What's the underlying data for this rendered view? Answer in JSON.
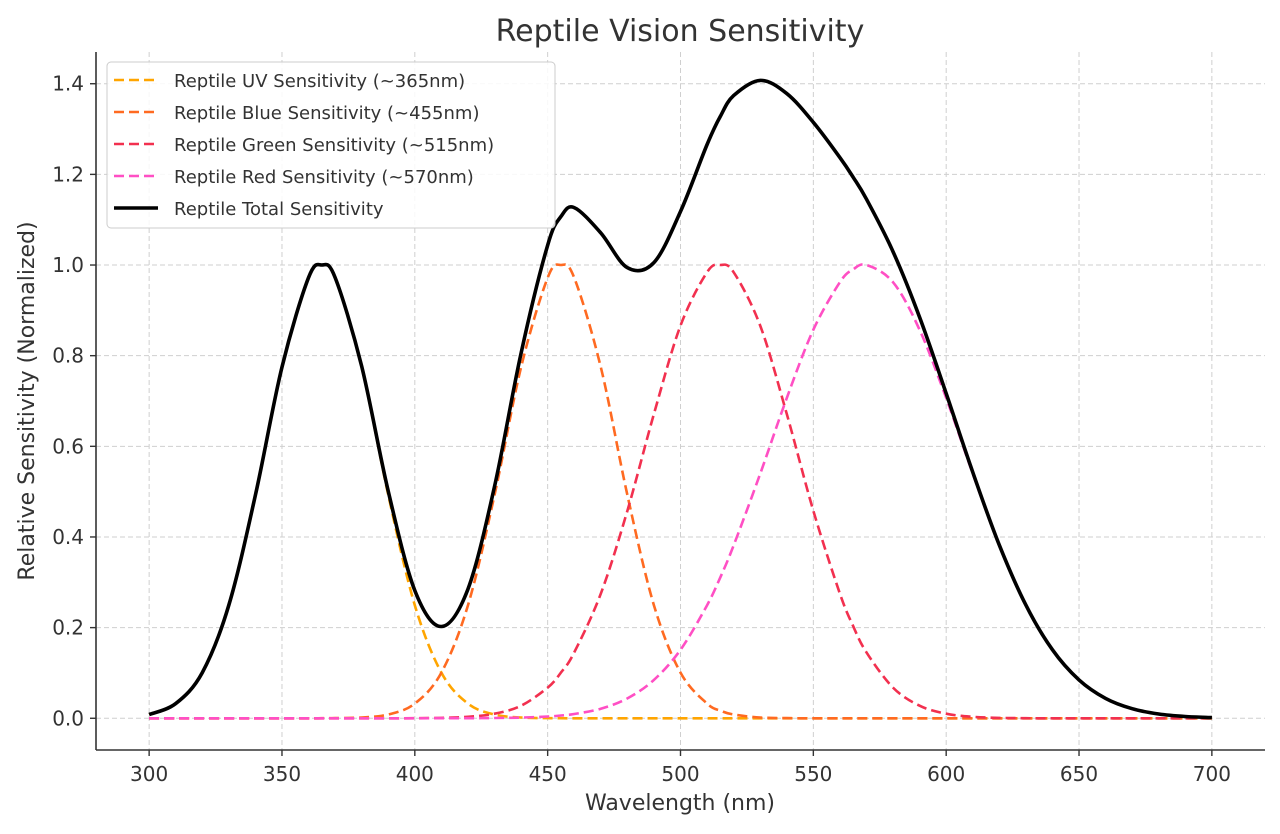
{
  "chart_data": {
    "type": "line",
    "title": "Reptile Vision Sensitivity",
    "xlabel": "Wavelength (nm)",
    "ylabel": "Relative Sensitivity (Normalized)",
    "xlim": [
      280,
      720
    ],
    "ylim": [
      -0.07,
      1.47
    ],
    "xticks": [
      300,
      350,
      400,
      450,
      500,
      550,
      600,
      650,
      700
    ],
    "yticks": [
      "0.0",
      "0.2",
      "0.4",
      "0.6",
      "0.8",
      "1.0",
      "1.2",
      "1.4"
    ],
    "grid": true,
    "legend_position": "top-left",
    "x": [
      300,
      310,
      320,
      330,
      340,
      350,
      360,
      365,
      370,
      380,
      390,
      400,
      410,
      420,
      430,
      440,
      450,
      455,
      460,
      470,
      480,
      490,
      500,
      510,
      515,
      520,
      530,
      540,
      550,
      560,
      565,
      570,
      580,
      590,
      600,
      610,
      620,
      630,
      640,
      650,
      660,
      670,
      680,
      690,
      700
    ],
    "series": [
      {
        "name": "Reptile UV Sensitivity (~365nm)",
        "color": "#FFA500",
        "style": "dashed",
        "values": [
          0.0083,
          0.0324,
          0.1007,
          0.2494,
          0.4923,
          0.7748,
          0.9721,
          1,
          0.9721,
          0.7748,
          0.4923,
          0.2494,
          0.1007,
          0.0324,
          0.0083,
          0.0017,
          0.0003,
          0.0001,
          0,
          0,
          0,
          0,
          0,
          0,
          0,
          0,
          0,
          0,
          0,
          0,
          0,
          0,
          0,
          0,
          0,
          0,
          0,
          0,
          0,
          0,
          0,
          0,
          0,
          0,
          0
        ]
      },
      {
        "name": "Reptile Blue Sensitivity (~455nm)",
        "color": "#FF6A21",
        "style": "dashed",
        "values": [
          0,
          0,
          0,
          0,
          0,
          0,
          0,
          0.0001,
          0.0003,
          0.0017,
          0.0083,
          0.0324,
          0.1007,
          0.2494,
          0.4923,
          0.7748,
          0.9721,
          1,
          0.9721,
          0.7748,
          0.4923,
          0.2494,
          0.1007,
          0.0324,
          0.0169,
          0.0083,
          0.0017,
          0.0003,
          0,
          0,
          0,
          0,
          0,
          0,
          0,
          0,
          0,
          0,
          0,
          0,
          0,
          0,
          0,
          0,
          0
        ]
      },
      {
        "name": "Reptile Green Sensitivity (~515nm)",
        "color": "#F2304F",
        "style": "dashed",
        "values": [
          0,
          0,
          0,
          0,
          0,
          0,
          0,
          0,
          0,
          0,
          0,
          0.0002,
          0.0009,
          0.0032,
          0.01,
          0.0277,
          0.0676,
          0.1007,
          0.1453,
          0.2749,
          0.4579,
          0.6713,
          0.8663,
          0.9842,
          1,
          0.9842,
          0.8663,
          0.6713,
          0.4579,
          0.2749,
          0.2031,
          0.1453,
          0.0676,
          0.0277,
          0.01,
          0.0032,
          0.0009,
          0.0002,
          0,
          0,
          0,
          0,
          0,
          0,
          0
        ]
      },
      {
        "name": "Reptile Red Sensitivity (~570nm)",
        "color": "#FF4FC4",
        "style": "dashed",
        "values": [
          0,
          0,
          0,
          0,
          0,
          0,
          0,
          0,
          0,
          0,
          0,
          0,
          0.0001,
          0.0002,
          0.0005,
          0.0015,
          0.0039,
          0.0061,
          0.0094,
          0.0211,
          0.0439,
          0.0847,
          0.151,
          0.2494,
          0.3113,
          0.3812,
          0.5394,
          0.7066,
          0.857,
          0.9621,
          0.9904,
          1,
          0.9621,
          0.857,
          0.7066,
          0.5394,
          0.3812,
          0.2494,
          0.151,
          0.0847,
          0.0439,
          0.0211,
          0.0094,
          0.0039,
          0.0015
        ]
      },
      {
        "name": "Reptile Total Sensitivity",
        "color": "#000000",
        "style": "solid",
        "values": [
          0.0083,
          0.0324,
          0.1007,
          0.2494,
          0.4923,
          0.7748,
          0.9721,
          1.0001,
          0.9724,
          0.7765,
          0.5006,
          0.282,
          0.2024,
          0.2852,
          0.5111,
          0.8057,
          1.0439,
          1.1069,
          1.1268,
          1.0708,
          0.9941,
          1.0054,
          1.118,
          1.266,
          1.3282,
          1.3737,
          1.4074,
          1.3782,
          1.3149,
          1.237,
          1.1935,
          1.1453,
          1.0297,
          0.8847,
          0.7166,
          0.5426,
          0.3821,
          0.2496,
          0.151,
          0.0847,
          0.0439,
          0.0211,
          0.0094,
          0.0039,
          0.0015
        ]
      }
    ]
  }
}
